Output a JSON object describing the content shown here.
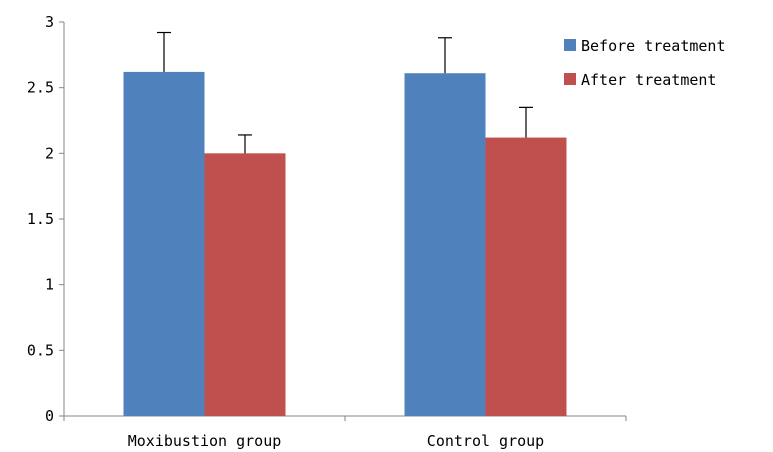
{
  "chart_data": {
    "type": "bar",
    "categories": [
      "Moxibustion group",
      "Control group"
    ],
    "series": [
      {
        "name": "Before treatment",
        "values": [
          2.62,
          2.61
        ],
        "errors": [
          0.3,
          0.27
        ],
        "color": "#4F81BD"
      },
      {
        "name": "After treatment",
        "values": [
          2.0,
          2.12
        ],
        "errors": [
          0.14,
          0.23
        ],
        "color": "#C0504D"
      }
    ],
    "title": "",
    "xlabel": "",
    "ylabel": "",
    "ylim": [
      0,
      3
    ],
    "yticks": [
      0,
      0.5,
      1,
      1.5,
      2,
      2.5,
      3
    ],
    "ytick_labels": [
      "0",
      "0.5",
      "1",
      "1.5",
      "2",
      "2.5",
      "3"
    ],
    "grid": false,
    "legend_position": "top-right"
  }
}
